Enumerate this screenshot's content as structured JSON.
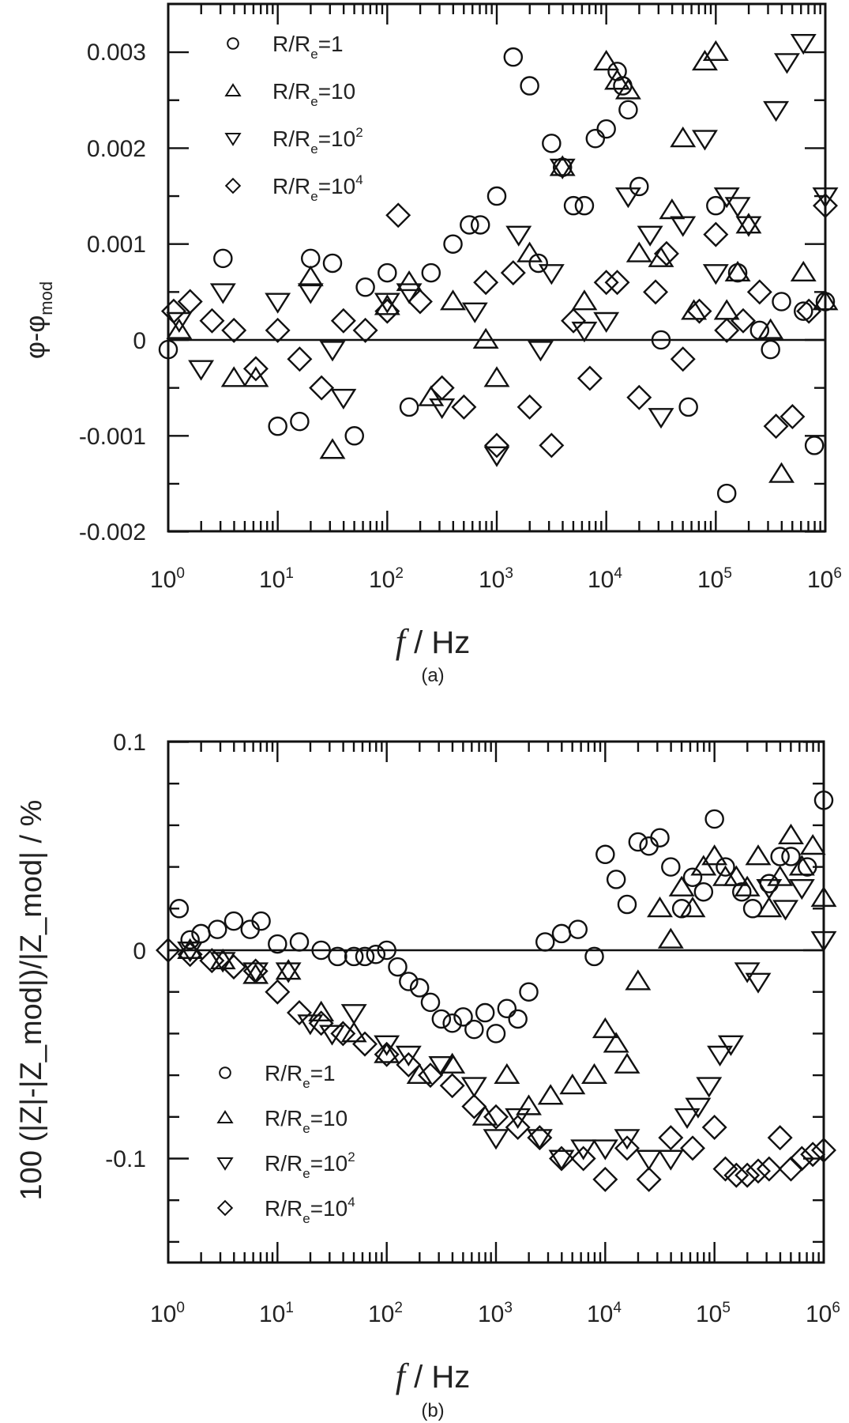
{
  "figure": {
    "panels": [
      {
        "id": "a",
        "label": "(a)",
        "ylabel": "φ-φ_mod",
        "ylabel_main": "φ-φ",
        "ylabel_sub": "mod",
        "xlabel_italic": "f",
        "xlabel_rest": " / Hz",
        "yticks": [
          "0.003",
          "0.002",
          "0.001",
          "0",
          "-0.001",
          "-0.002"
        ],
        "xticks_base": [
          "10",
          "10",
          "10",
          "10",
          "10",
          "10",
          "10"
        ],
        "xticks_exp": [
          "0",
          "1",
          "2",
          "3",
          "4",
          "5",
          "6"
        ],
        "legend": [
          {
            "marker": "circle",
            "prefix": "R/R",
            "sub": "e",
            "eq": "=1",
            "sup": ""
          },
          {
            "marker": "triangle-up",
            "prefix": "R/R",
            "sub": "e",
            "eq": "=10",
            "sup": ""
          },
          {
            "marker": "triangle-down",
            "prefix": "R/R",
            "sub": "e",
            "eq": "=10",
            "sup": "2"
          },
          {
            "marker": "diamond",
            "prefix": "R/R",
            "sub": "e",
            "eq": "=10",
            "sup": "4"
          }
        ]
      },
      {
        "id": "b",
        "label": "(b)",
        "ylabel": "100 (|Z|-|Z_mod|)/|Z_mod| / %",
        "xlabel_italic": "f",
        "xlabel_rest": " / Hz",
        "yticks": [
          "0.1",
          "0",
          "-0.1"
        ],
        "xticks_base": [
          "10",
          "10",
          "10",
          "10",
          "10",
          "10",
          "10"
        ],
        "xticks_exp": [
          "0",
          "1",
          "2",
          "3",
          "4",
          "5",
          "6"
        ],
        "legend": [
          {
            "marker": "circle",
            "prefix": "R/R",
            "sub": "e",
            "eq": "=1",
            "sup": ""
          },
          {
            "marker": "triangle-up",
            "prefix": "R/R",
            "sub": "e",
            "eq": "=10",
            "sup": ""
          },
          {
            "marker": "triangle-down",
            "prefix": "R/R",
            "sub": "e",
            "eq": "=10",
            "sup": "2"
          },
          {
            "marker": "diamond",
            "prefix": "R/R",
            "sub": "e",
            "eq": "=10",
            "sup": "4"
          }
        ]
      }
    ]
  },
  "chart_data": [
    {
      "type": "scatter",
      "title": "(a)",
      "xlabel": "f / Hz",
      "ylabel": "φ-φ_mod",
      "xscale": "log",
      "xlim": [
        1,
        1000000
      ],
      "ylim": [
        -0.002,
        0.0035
      ],
      "yticks": [
        0.003,
        0.002,
        0.001,
        0,
        -0.001,
        -0.002
      ],
      "xticks": [
        1,
        10,
        100,
        1000,
        10000,
        100000,
        1000000
      ],
      "grid": false,
      "reference_line": {
        "y": 0
      },
      "legend_position": "upper left",
      "series": [
        {
          "name": "R/Re=1",
          "marker": "circle",
          "x_log10": [
            0.0,
            0.5,
            1.0,
            1.2,
            1.3,
            1.5,
            1.7,
            1.8,
            2.0,
            2.2,
            2.4,
            2.6,
            2.75,
            2.85,
            3.0,
            3.15,
            3.3,
            3.38,
            3.5,
            3.6,
            3.7,
            3.8,
            3.9,
            4.0,
            4.1,
            4.15,
            4.2,
            4.3,
            4.5,
            4.75,
            5.0,
            5.1,
            5.2,
            5.4,
            5.5,
            5.6,
            5.8,
            5.9,
            6.0
          ],
          "y": [
            -0.0001,
            0.00085,
            -0.0009,
            -0.00085,
            0.00085,
            0.0008,
            -0.001,
            0.00055,
            0.0007,
            -0.0007,
            0.0007,
            0.001,
            0.0012,
            0.0012,
            0.0015,
            0.00295,
            0.00265,
            0.0008,
            0.00205,
            0.0018,
            0.0014,
            0.0014,
            0.0021,
            0.0022,
            0.0028,
            0.00265,
            0.0024,
            0.0016,
            0.0,
            -0.0007,
            0.0014,
            -0.0016,
            0.0007,
            0.0001,
            -0.0001,
            0.0004,
            0.0003,
            -0.0011,
            0.0004
          ]
        },
        {
          "name": "R/Re=10",
          "marker": "triangle-up",
          "x_log10": [
            0.1,
            0.6,
            0.8,
            1.3,
            1.5,
            2.0,
            2.2,
            2.4,
            2.6,
            2.9,
            3.0,
            3.3,
            3.6,
            3.8,
            4.0,
            4.1,
            4.2,
            4.3,
            4.5,
            4.6,
            4.7,
            4.8,
            4.9,
            5.0,
            5.1,
            5.2,
            5.3,
            5.5,
            5.6,
            5.8,
            6.0
          ],
          "y": [
            0.0001,
            -0.0004,
            -0.0004,
            0.00065,
            -0.00115,
            0.00035,
            0.0006,
            -0.0006,
            0.0004,
            0.0,
            -0.0004,
            0.0009,
            0.0018,
            0.0004,
            0.0029,
            0.0027,
            0.0026,
            0.0009,
            0.00085,
            0.00135,
            0.0021,
            0.0003,
            0.0029,
            0.003,
            0.0003,
            0.0007,
            0.0012,
            0.0001,
            -0.0014,
            0.0007,
            0.0004
          ]
        },
        {
          "name": "R/Re=10^2",
          "marker": "triangle-down",
          "x_log10": [
            0.1,
            0.3,
            0.5,
            1.0,
            1.3,
            1.5,
            1.6,
            2.0,
            2.2,
            2.5,
            2.8,
            3.0,
            3.2,
            3.4,
            3.5,
            3.6,
            3.8,
            4.0,
            4.2,
            4.4,
            4.5,
            4.7,
            4.9,
            5.0,
            5.1,
            5.2,
            5.3,
            5.55,
            5.65,
            5.8,
            6.0
          ],
          "y": [
            0.0002,
            -0.0003,
            0.0005,
            0.0004,
            0.0005,
            -0.0001,
            -0.0006,
            0.0004,
            0.0005,
            -0.0007,
            0.0003,
            -0.0012,
            0.0011,
            -0.0001,
            0.0007,
            0.0018,
            0.0001,
            0.0002,
            0.0015,
            0.0011,
            -0.0008,
            0.0012,
            0.0021,
            0.0007,
            0.0015,
            0.0014,
            0.0012,
            0.0024,
            0.0029,
            0.0031,
            0.0015
          ]
        },
        {
          "name": "R/Re=10^4",
          "marker": "diamond",
          "x_log10": [
            0.05,
            0.2,
            0.4,
            0.6,
            0.8,
            1.0,
            1.2,
            1.4,
            1.6,
            1.8,
            2.0,
            2.1,
            2.3,
            2.5,
            2.7,
            2.9,
            3.0,
            3.15,
            3.3,
            3.5,
            3.7,
            3.85,
            4.0,
            4.1,
            4.3,
            4.45,
            4.55,
            4.7,
            4.85,
            5.0,
            5.1,
            5.25,
            5.4,
            5.55,
            5.7,
            5.85,
            6.0
          ],
          "y": [
            0.0003,
            0.0004,
            0.0002,
            0.0001,
            -0.0003,
            0.0001,
            -0.0002,
            -0.0005,
            0.0002,
            0.0001,
            0.0003,
            0.0013,
            0.0004,
            -0.0005,
            -0.0007,
            0.0006,
            -0.0011,
            0.0007,
            -0.0007,
            -0.0011,
            0.0002,
            -0.0004,
            0.0006,
            0.0006,
            -0.0006,
            0.0005,
            0.0009,
            -0.0002,
            0.0003,
            0.0011,
            0.0001,
            0.0002,
            0.0005,
            -0.0009,
            -0.0008,
            0.0003,
            0.0014
          ]
        }
      ]
    },
    {
      "type": "scatter",
      "title": "(b)",
      "xlabel": "f / Hz",
      "ylabel": "100 (|Z|-|Z_mod|)/|Z_mod| / %",
      "xscale": "log",
      "xlim": [
        1,
        1000000
      ],
      "ylim": [
        -0.15,
        0.1
      ],
      "yticks": [
        0.1,
        0,
        -0.1
      ],
      "xticks": [
        1,
        10,
        100,
        1000,
        10000,
        100000,
        1000000
      ],
      "grid": false,
      "reference_line": {
        "y": 0
      },
      "legend_position": "lower left",
      "series": [
        {
          "name": "R/Re=1",
          "marker": "circle",
          "x_log10": [
            0.1,
            0.2,
            0.3,
            0.45,
            0.6,
            0.75,
            0.85,
            1.0,
            1.2,
            1.4,
            1.55,
            1.7,
            1.8,
            1.9,
            2.0,
            2.1,
            2.2,
            2.3,
            2.4,
            2.5,
            2.6,
            2.7,
            2.8,
            2.9,
            3.0,
            3.1,
            3.2,
            3.3,
            3.45,
            3.6,
            3.75,
            3.9,
            4.0,
            4.1,
            4.2,
            4.3,
            4.4,
            4.5,
            4.6,
            4.7,
            4.8,
            4.9,
            5.0,
            5.1,
            5.25,
            5.35,
            5.5,
            5.6,
            5.7,
            5.85,
            6.0
          ],
          "y": [
            0.02,
            0.005,
            0.008,
            0.01,
            0.014,
            0.01,
            0.014,
            0.003,
            0.004,
            0.0,
            -0.003,
            -0.003,
            -0.003,
            -0.002,
            0.0,
            -0.008,
            -0.015,
            -0.018,
            -0.025,
            -0.033,
            -0.035,
            -0.032,
            -0.038,
            -0.03,
            -0.04,
            -0.028,
            -0.033,
            -0.02,
            0.004,
            0.008,
            0.01,
            -0.003,
            0.046,
            0.034,
            0.022,
            0.052,
            0.05,
            0.054,
            0.04,
            0.02,
            0.035,
            0.028,
            0.063,
            0.04,
            0.028,
            0.02,
            0.032,
            0.045,
            0.045,
            0.04,
            0.072
          ]
        },
        {
          "name": "R/Re=10",
          "marker": "triangle-up",
          "x_log10": [
            0.2,
            0.5,
            0.8,
            1.1,
            1.4,
            1.7,
            2.0,
            2.3,
            2.6,
            2.9,
            3.1,
            3.3,
            3.5,
            3.7,
            3.9,
            4.0,
            4.1,
            4.2,
            4.3,
            4.5,
            4.6,
            4.7,
            4.8,
            4.9,
            5.0,
            5.1,
            5.2,
            5.3,
            5.4,
            5.5,
            5.6,
            5.7,
            5.8,
            5.9,
            6.0
          ],
          "y": [
            0.0,
            -0.005,
            -0.012,
            -0.01,
            -0.03,
            -0.04,
            -0.05,
            -0.06,
            -0.055,
            -0.08,
            -0.06,
            -0.075,
            -0.07,
            -0.065,
            -0.06,
            -0.038,
            -0.045,
            -0.055,
            -0.015,
            0.02,
            0.005,
            0.03,
            0.02,
            0.04,
            0.045,
            0.035,
            0.035,
            0.03,
            0.045,
            0.02,
            0.035,
            0.055,
            0.04,
            0.05,
            0.025
          ]
        },
        {
          "name": "R/Re=10^2",
          "marker": "triangle-down",
          "x_log10": [
            0.2,
            0.5,
            0.8,
            1.1,
            1.3,
            1.5,
            1.7,
            2.0,
            2.2,
            2.5,
            2.8,
            3.0,
            3.2,
            3.4,
            3.6,
            3.8,
            4.0,
            4.2,
            4.4,
            4.6,
            4.75,
            4.85,
            4.95,
            5.05,
            5.15,
            5.3,
            5.4,
            5.5,
            5.65,
            5.8,
            6.0
          ],
          "y": [
            0.0,
            -0.005,
            -0.01,
            -0.01,
            -0.035,
            -0.04,
            -0.03,
            -0.045,
            -0.05,
            -0.055,
            -0.065,
            -0.09,
            -0.08,
            -0.09,
            -0.1,
            -0.095,
            -0.095,
            -0.09,
            -0.1,
            -0.1,
            -0.08,
            -0.075,
            -0.065,
            -0.05,
            -0.045,
            -0.01,
            -0.015,
            0.03,
            0.02,
            0.03,
            0.005
          ]
        },
        {
          "name": "R/Re=10^4",
          "marker": "diamond",
          "x_log10": [
            0.0,
            0.2,
            0.4,
            0.6,
            0.8,
            1.0,
            1.2,
            1.4,
            1.6,
            1.8,
            2.0,
            2.2,
            2.4,
            2.6,
            2.8,
            3.0,
            3.2,
            3.4,
            3.6,
            3.8,
            4.0,
            4.2,
            4.4,
            4.6,
            4.8,
            5.0,
            5.1,
            5.2,
            5.3,
            5.4,
            5.5,
            5.6,
            5.7,
            5.8,
            5.9,
            6.0
          ],
          "y": [
            0.0,
            -0.002,
            -0.005,
            -0.008,
            -0.01,
            -0.02,
            -0.03,
            -0.035,
            -0.04,
            -0.045,
            -0.05,
            -0.055,
            -0.06,
            -0.065,
            -0.075,
            -0.08,
            -0.085,
            -0.09,
            -0.1,
            -0.1,
            -0.11,
            -0.095,
            -0.11,
            -0.09,
            -0.095,
            -0.085,
            -0.105,
            -0.108,
            -0.108,
            -0.106,
            -0.105,
            -0.09,
            -0.105,
            -0.1,
            -0.098,
            -0.096
          ]
        }
      ]
    }
  ]
}
